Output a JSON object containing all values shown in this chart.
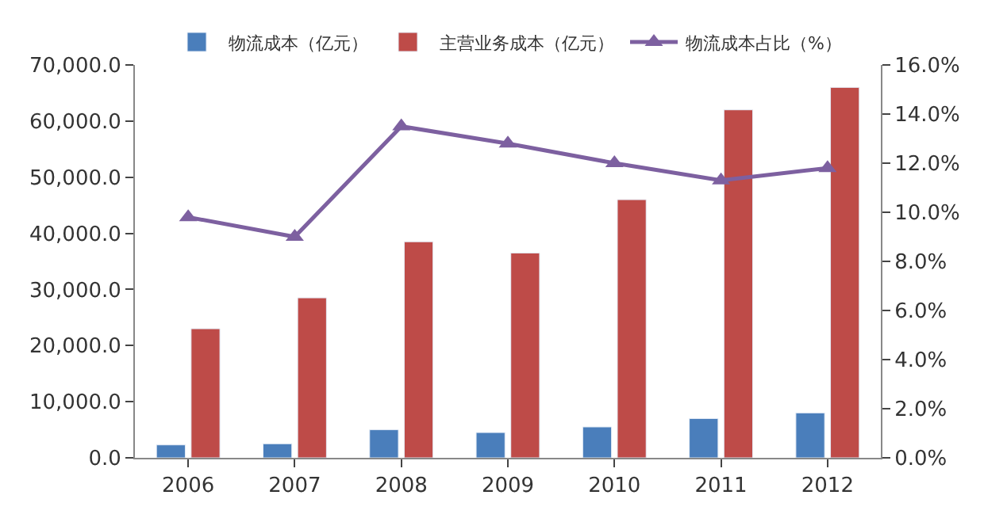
{
  "chart_data": {
    "type": "bar",
    "categories": [
      "2006",
      "2007",
      "2008",
      "2009",
      "2010",
      "2011",
      "2012"
    ],
    "series": [
      {
        "name": "物流成本（亿元）",
        "color": "#4a7ebb",
        "values": [
          2300,
          2500,
          5000,
          4500,
          5500,
          7000,
          8000
        ]
      },
      {
        "name": "主营业务成本（亿元）",
        "color": "#be4b48",
        "values": [
          23000,
          28500,
          38500,
          36500,
          46000,
          62000,
          66000
        ]
      },
      {
        "name": "物流成本占比（%）",
        "type": "line",
        "axis": "y2",
        "color": "#7d60a0",
        "values": [
          9.8,
          9.0,
          13.5,
          12.8,
          12.0,
          11.3,
          11.8
        ]
      }
    ],
    "ylim": [
      0,
      70000
    ],
    "yticks": [
      {
        "value": 0,
        "label": "0.0"
      },
      {
        "value": 10000,
        "label": "10,000.0"
      },
      {
        "value": 20000,
        "label": "20,000.0"
      },
      {
        "value": 30000,
        "label": "30,000.0"
      },
      {
        "value": 40000,
        "label": "40,000.0"
      },
      {
        "value": 50000,
        "label": "50,000.0"
      },
      {
        "value": 60000,
        "label": "60,000.0"
      },
      {
        "value": 70000,
        "label": "70,000.0"
      }
    ],
    "y2lim": [
      0,
      16
    ],
    "y2ticks": [
      {
        "value": 0,
        "label": "0.0%"
      },
      {
        "value": 2,
        "label": "2.0%"
      },
      {
        "value": 4,
        "label": "4.0%"
      },
      {
        "value": 6,
        "label": "6.0%"
      },
      {
        "value": 8,
        "label": "8.0%"
      },
      {
        "value": 10,
        "label": "10.0%"
      },
      {
        "value": 12,
        "label": "12.0%"
      },
      {
        "value": 14,
        "label": "14.0%"
      },
      {
        "value": 16,
        "label": "16.0%"
      }
    ],
    "marker": "triangle",
    "legend": "top"
  }
}
